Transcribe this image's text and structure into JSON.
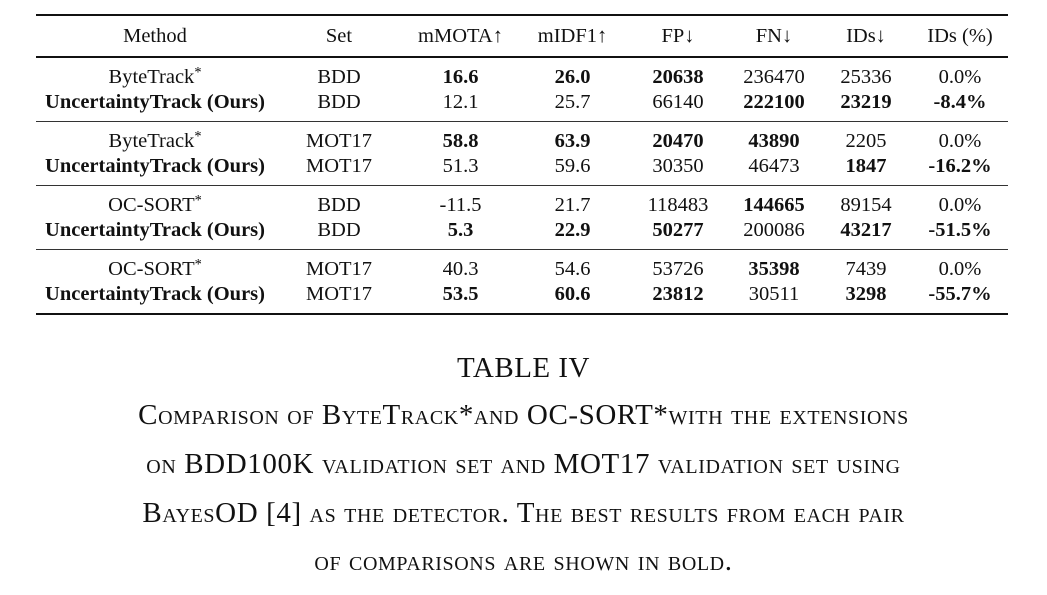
{
  "table": {
    "headers": [
      "Method",
      "Set",
      "mMOTA↑",
      "mIDF1↑",
      "FP↓",
      "FN↓",
      "IDs↓",
      "IDs (%)"
    ],
    "groups": [
      {
        "rows": [
          {
            "method": "ByteTrack",
            "sup": "*",
            "set": "BDD",
            "mmota": "16.6",
            "midf1": "26.0",
            "fp": "20638",
            "fn": "236470",
            "ids": "25336",
            "ids_pct": "0.0%"
          },
          {
            "method": "UncertaintyTrack (Ours)",
            "sup": "",
            "set": "BDD",
            "mmota": "12.1",
            "midf1": "25.7",
            "fp": "66140",
            "fn": "222100",
            "ids": "23219",
            "ids_pct": "-8.4%"
          }
        ]
      },
      {
        "rows": [
          {
            "method": "ByteTrack",
            "sup": "*",
            "set": "MOT17",
            "mmota": "58.8",
            "midf1": "63.9",
            "fp": "20470",
            "fn": "43890",
            "ids": "2205",
            "ids_pct": "0.0%"
          },
          {
            "method": "UncertaintyTrack (Ours)",
            "sup": "",
            "set": "MOT17",
            "mmota": "51.3",
            "midf1": "59.6",
            "fp": "30350",
            "fn": "46473",
            "ids": "1847",
            "ids_pct": "-16.2%"
          }
        ]
      },
      {
        "rows": [
          {
            "method": "OC-SORT",
            "sup": "*",
            "set": "BDD",
            "mmota": "-11.5",
            "midf1": "21.7",
            "fp": "118483",
            "fn": "144665",
            "ids": "89154",
            "ids_pct": "0.0%"
          },
          {
            "method": "UncertaintyTrack (Ours)",
            "sup": "",
            "set": "BDD",
            "mmota": "5.3",
            "midf1": "22.9",
            "fp": "50277",
            "fn": "200086",
            "ids": "43217",
            "ids_pct": "-51.5%"
          }
        ]
      },
      {
        "rows": [
          {
            "method": "OC-SORT",
            "sup": "*",
            "set": "MOT17",
            "mmota": "40.3",
            "midf1": "54.6",
            "fp": "53726",
            "fn": "35398",
            "ids": "7439",
            "ids_pct": "0.0%"
          },
          {
            "method": "UncertaintyTrack (Ours)",
            "sup": "",
            "set": "MOT17",
            "mmota": "53.5",
            "midf1": "60.6",
            "fp": "23812",
            "fn": "30511",
            "ids": "3298",
            "ids_pct": "-55.7%"
          }
        ]
      }
    ]
  },
  "caption": {
    "label": "TABLE IV",
    "lines": [
      "Comparison of ByteTrack*and OC-SORT*with the extensions",
      "on BDD100K validation set and MOT17 validation set using",
      "BayesOD [4] as the detector. The best results from each pair",
      "of comparisons are shown in bold."
    ]
  }
}
